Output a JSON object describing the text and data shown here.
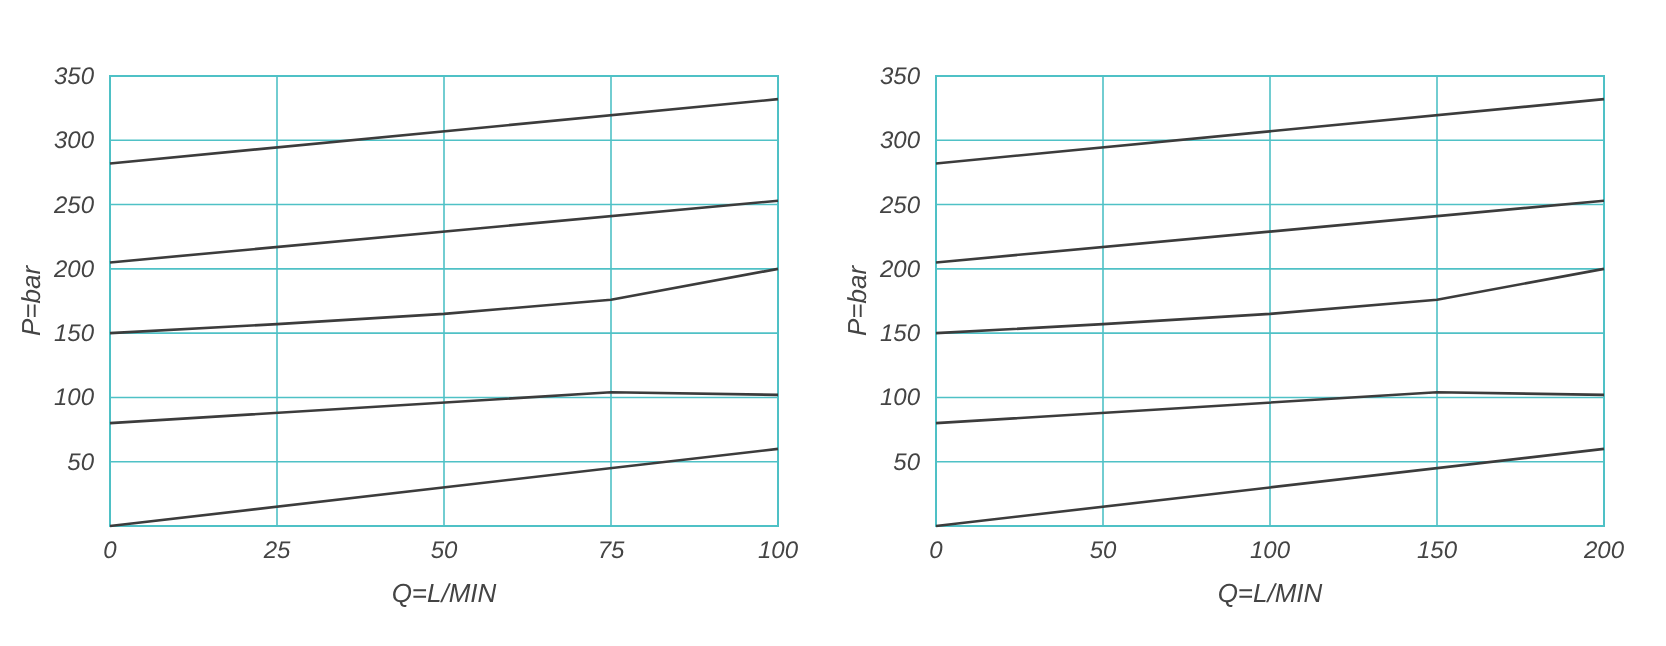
{
  "chart_data": [
    {
      "type": "line",
      "xlabel": "Q=L/MIN",
      "ylabel": "P=bar",
      "xlim": [
        0,
        100
      ],
      "ylim": [
        0,
        350
      ],
      "xticks": [
        0,
        25,
        50,
        75,
        100
      ],
      "yticks": [
        {
          "value": 0,
          "label": null
        },
        50,
        100,
        150,
        200,
        250,
        300,
        350
      ],
      "grid": true,
      "marker": "none",
      "line_style": "solid",
      "series": [
        {
          "color": "#3c3c3c",
          "x": [
            0,
            100
          ],
          "values": [
            282,
            332
          ]
        },
        {
          "color": "#3c3c3c",
          "x": [
            0,
            100
          ],
          "values": [
            205,
            253
          ]
        },
        {
          "color": "#3c3c3c",
          "x": [
            0,
            25,
            50,
            75,
            100
          ],
          "values": [
            150,
            157,
            165,
            176,
            200
          ]
        },
        {
          "color": "#3c3c3c",
          "x": [
            0,
            75,
            100
          ],
          "values": [
            80,
            104,
            102
          ]
        },
        {
          "color": "#3c3c3c",
          "x": [
            0,
            100
          ],
          "values": [
            0,
            60
          ]
        }
      ]
    },
    {
      "type": "line",
      "xlabel": "Q=L/MIN",
      "ylabel": "P=bar",
      "xlim": [
        0,
        200
      ],
      "ylim": [
        0,
        350
      ],
      "xticks": [
        0,
        50,
        100,
        150,
        200
      ],
      "yticks": [
        {
          "value": 0,
          "label": null
        },
        50,
        100,
        150,
        200,
        250,
        300,
        350
      ],
      "grid": true,
      "marker": "none",
      "line_style": "solid",
      "series": [
        {
          "color": "#3c3c3c",
          "x": [
            0,
            200
          ],
          "values": [
            282,
            332
          ]
        },
        {
          "color": "#3c3c3c",
          "x": [
            0,
            200
          ],
          "values": [
            205,
            253
          ]
        },
        {
          "color": "#3c3c3c",
          "x": [
            0,
            50,
            100,
            150,
            200
          ],
          "values": [
            150,
            157,
            165,
            176,
            200
          ]
        },
        {
          "color": "#3c3c3c",
          "x": [
            0,
            150,
            200
          ],
          "values": [
            80,
            104,
            102
          ]
        },
        {
          "color": "#3c3c3c",
          "x": [
            0,
            200
          ],
          "values": [
            0,
            60
          ]
        }
      ]
    }
  ]
}
